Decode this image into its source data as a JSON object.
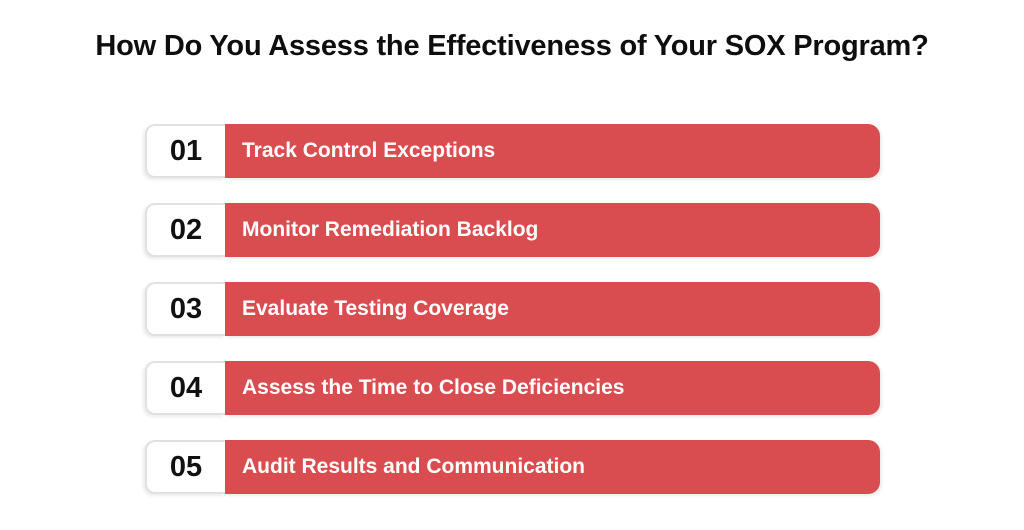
{
  "title": "How Do You Assess the Effectiveness of Your SOX Program?",
  "accent_color": "#d94d50",
  "items": [
    {
      "number": "01",
      "label": "Track Control Exceptions"
    },
    {
      "number": "02",
      "label": "Monitor Remediation Backlog"
    },
    {
      "number": "03",
      "label": "Evaluate Testing Coverage"
    },
    {
      "number": "04",
      "label": "Assess the Time to Close Deficiencies"
    },
    {
      "number": "05",
      "label": "Audit Results and Communication"
    }
  ]
}
